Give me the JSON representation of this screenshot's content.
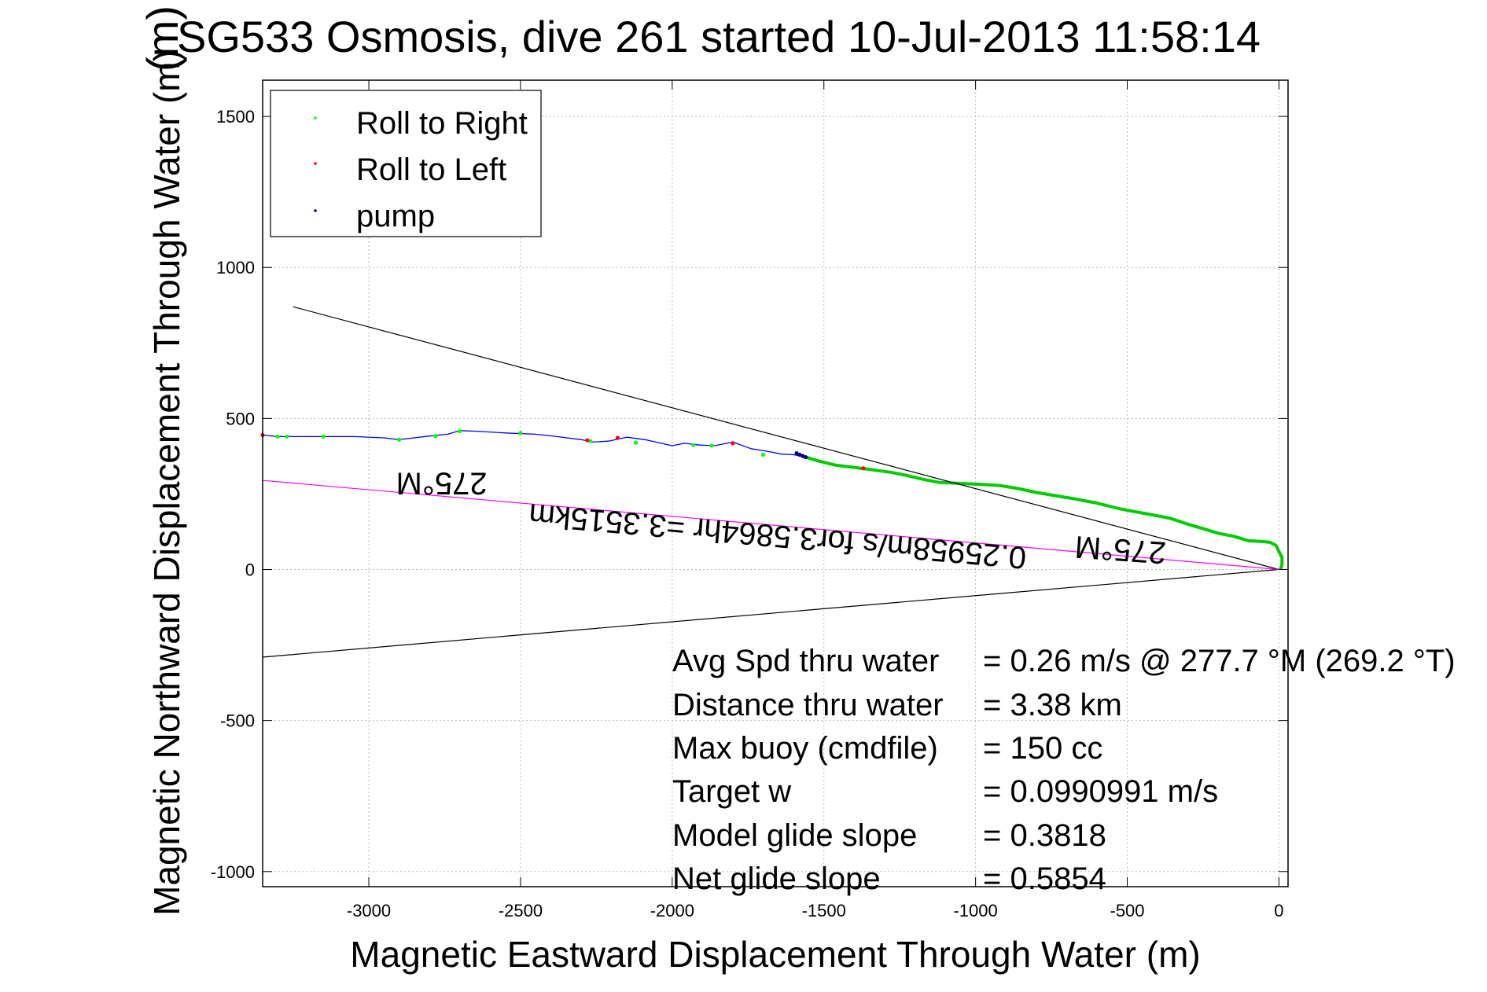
{
  "chart_data": {
    "type": "line",
    "title": "SG533 Osmosis, dive 261 started 10-Jul-2013 11:58:14",
    "title_prefix_overlap": "(m)",
    "xlabel": "Magnetic Eastward Displacement Through Water (m)",
    "ylabel": "Magnetic Northward Displacement Through Water (m)",
    "xlim": [
      -3350,
      30
    ],
    "ylim": [
      -1050,
      1620
    ],
    "xticks": [
      -3000,
      -2500,
      -2000,
      -1500,
      -1000,
      -500,
      0
    ],
    "xtick_labels": [
      "-3000",
      "-2500",
      "-2000",
      "-1500",
      "-1000",
      "-500",
      "0"
    ],
    "yticks": [
      -1000,
      -500,
      0,
      500,
      1000,
      1500
    ],
    "ytick_labels": [
      "-1000",
      "-500",
      "0",
      "500",
      "1000",
      "1500"
    ],
    "grid": true,
    "legend_position": "top-left",
    "legend": [
      {
        "label": "Roll to Right",
        "color": "#00ff00"
      },
      {
        "label": "Roll to Left",
        "color": "#ff0000"
      },
      {
        "label": "pump",
        "color": "#000080"
      }
    ],
    "series": [
      {
        "role": "track",
        "color": "#0000ff",
        "x": [
          -3350,
          -3300,
          -3250,
          -3150,
          -3050,
          -2950,
          -2900,
          -2800,
          -2740,
          -2700,
          -2650,
          -2550,
          -2450,
          -2380,
          -2300,
          -2260,
          -2210,
          -2150,
          -2090,
          -2000,
          -1960,
          -1910,
          -1860,
          -1800,
          -1740,
          -1690,
          -1640,
          -1600,
          -1570
        ],
        "y": [
          445,
          440,
          440,
          440,
          440,
          436,
          430,
          442,
          448,
          460,
          458,
          452,
          448,
          440,
          430,
          422,
          425,
          438,
          430,
          410,
          418,
          412,
          410,
          422,
          400,
          392,
          382,
          380,
          375
        ]
      },
      {
        "role": "track-surface",
        "color": "#00cc00",
        "x": [
          -1570,
          -1520,
          -1460,
          -1400,
          -1340,
          -1280,
          -1230,
          -1180,
          -1120,
          -1050,
          -980,
          -920,
          -860,
          -800,
          -740,
          -680,
          -600,
          -520,
          -440,
          -360,
          -300,
          -250,
          -200,
          -150,
          -100,
          -60,
          -30,
          -10,
          0,
          10,
          10,
          5
        ],
        "y": [
          375,
          360,
          345,
          338,
          330,
          322,
          312,
          300,
          288,
          285,
          282,
          278,
          268,
          255,
          245,
          235,
          220,
          200,
          185,
          170,
          150,
          135,
          120,
          110,
          95,
          93,
          90,
          80,
          60,
          40,
          15,
          0
        ]
      },
      {
        "role": "roll-right-points",
        "color": "#00ff00",
        "x": [
          -3300,
          -3270,
          -3150,
          -2900,
          -2780,
          -2700,
          -2500,
          -2270,
          -2120,
          -1930,
          -1870,
          -1700
        ],
        "y": [
          440,
          440,
          440,
          430,
          442,
          458,
          452,
          425,
          420,
          412,
          410,
          380
        ]
      },
      {
        "role": "roll-left-points",
        "color": "#ff0000",
        "x": [
          -3350,
          -2280,
          -2180,
          -1800,
          -1370
        ],
        "y": [
          445,
          428,
          436,
          418,
          335
        ]
      },
      {
        "role": "pump-points",
        "color": "#000080",
        "x": [
          -1590,
          -1580,
          -1570,
          -1560
        ],
        "y": [
          385,
          380,
          376,
          372
        ]
      },
      {
        "role": "heading-line-upper",
        "color": "#000000",
        "x": [
          -3250,
          0
        ],
        "y": [
          870,
          0
        ]
      },
      {
        "role": "heading-line-lower",
        "color": "#000000",
        "x": [
          -3350,
          0
        ],
        "y": [
          -290,
          0
        ]
      },
      {
        "role": "average-velocity-line",
        "color": "#ff00ff",
        "x": [
          -3350,
          0
        ],
        "y": [
          295,
          0
        ]
      }
    ],
    "annotations": [
      {
        "text": "275°M",
        "x": -2760,
        "y": 320,
        "rotation_deg": 180
      },
      {
        "text": "275°M",
        "x": -520,
        "y": 100,
        "rotation_deg": 184
      },
      {
        "text": "0.25958m/s for3.5864hr =3.3515km",
        "x": -1650,
        "y": 145,
        "rotation_deg": 185
      }
    ],
    "stats": [
      {
        "label": "Avg Spd thru water",
        "value": "=  0.26 m/s @ 277.7 °M (269.2 °T)"
      },
      {
        "label": "Distance thru water",
        "value": "=  3.38 km"
      },
      {
        "label": "Max buoy (cmdfile)",
        "value": "= 150 cc"
      },
      {
        "label": "Target w",
        "value": "= 0.0990991 m/s"
      },
      {
        "label": "Model glide slope",
        "value": "= 0.3818"
      },
      {
        "label": "Net glide slope",
        "value": "= 0.5854"
      }
    ]
  }
}
